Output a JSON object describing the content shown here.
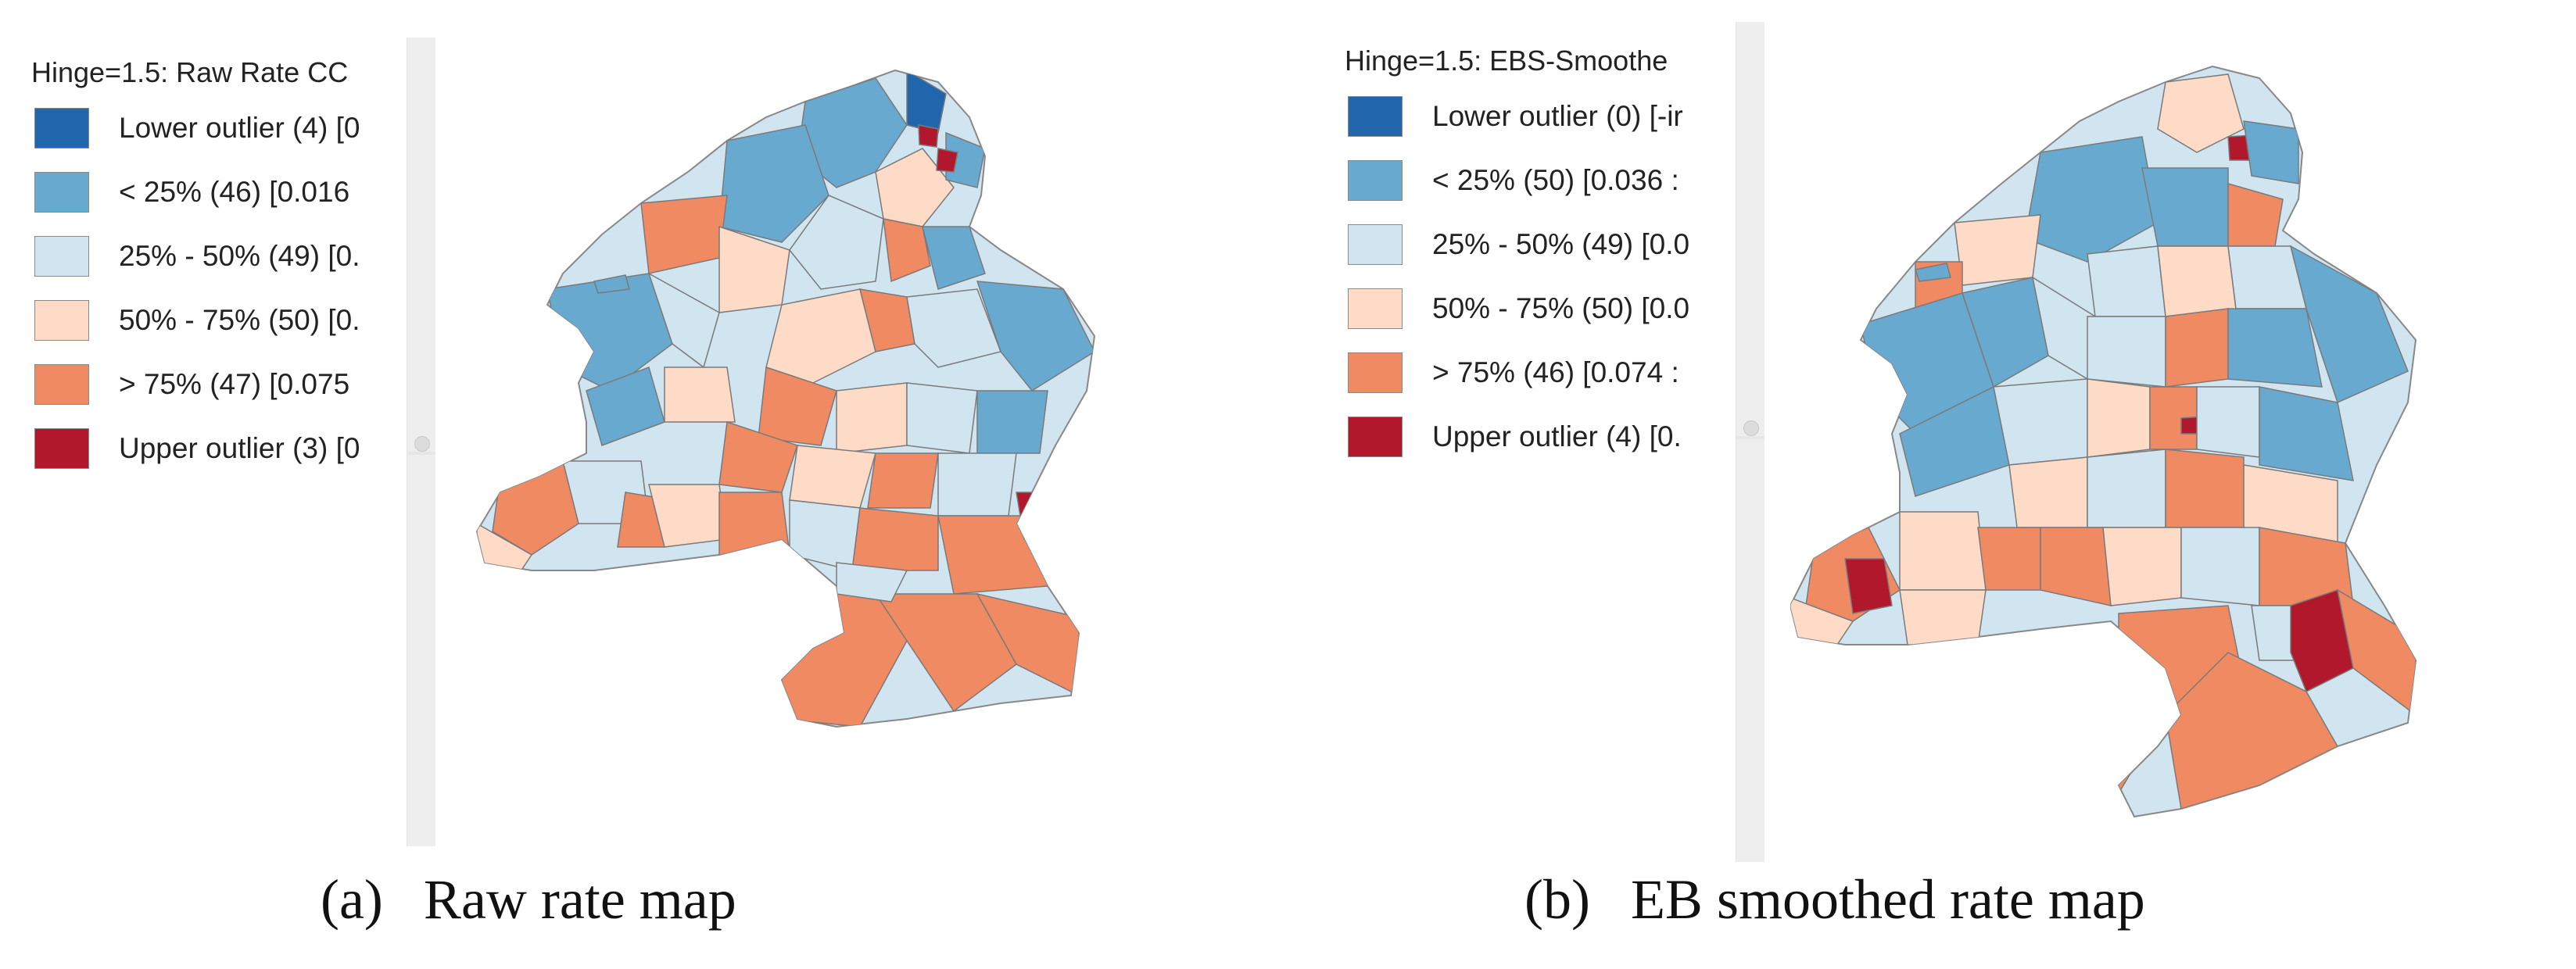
{
  "panels": [
    {
      "legend": {
        "title": "Hinge=1.5: Raw Rate CC",
        "items": [
          {
            "label": "Lower outlier (4)  [0",
            "color": "#2166ac"
          },
          {
            "label": "< 25% (46)  [0.016",
            "color": "#67a9cf"
          },
          {
            "label": "25% - 50% (49)  [0.",
            "color": "#d1e5f0"
          },
          {
            "label": "50% - 75% (50)  [0.",
            "color": "#fddbc7"
          },
          {
            "label": "> 75% (47)  [0.075",
            "color": "#ef8a62"
          },
          {
            "label": "Upper outlier (3)  [0",
            "color": "#b2182b"
          }
        ]
      },
      "caption": {
        "letter": "(a)",
        "text": "Raw rate map"
      }
    },
    {
      "legend": {
        "title": "Hinge=1.5: EBS-Smoothe",
        "items": [
          {
            "label": "Lower outlier (0)  [-ir",
            "color": "#2166ac"
          },
          {
            "label": "< 25% (50)  [0.036 :",
            "color": "#67a9cf"
          },
          {
            "label": "25% - 50% (49)  [0.0",
            "color": "#d1e5f0"
          },
          {
            "label": "50% - 75% (50)  [0.0",
            "color": "#fddbc7"
          },
          {
            "label": "> 75% (46)  [0.074 :",
            "color": "#ef8a62"
          },
          {
            "label": "Upper outlier (4)  [0.",
            "color": "#b2182b"
          }
        ]
      },
      "caption": {
        "letter": "(b)",
        "text": "EB smoothed rate map"
      }
    }
  ]
}
